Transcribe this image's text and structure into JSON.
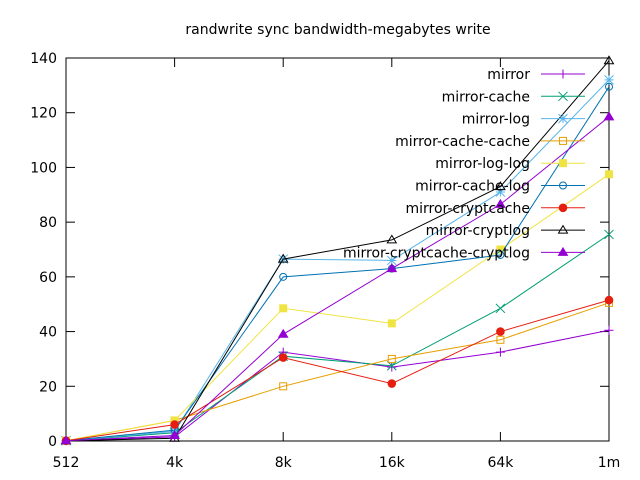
{
  "chart_data": {
    "type": "line",
    "title": "randwrite sync bandwidth-megabytes write",
    "xlabel": "",
    "ylabel": "",
    "categories": [
      "512",
      "4k",
      "8k",
      "16k",
      "64k",
      "1m"
    ],
    "ylim": [
      0,
      140
    ],
    "yticks": [
      0,
      20,
      40,
      60,
      80,
      100,
      120,
      140
    ],
    "grid": false,
    "legend_position": "top-right",
    "series": [
      {
        "name": "mirror",
        "color": "#9400d3",
        "marker": "plus",
        "values": [
          0.1,
          1.5,
          32.5,
          27,
          32.5,
          40.5
        ]
      },
      {
        "name": "mirror-cache",
        "color": "#009e73",
        "marker": "cross",
        "values": [
          0.1,
          3,
          31,
          27.5,
          48.5,
          75.5
        ]
      },
      {
        "name": "mirror-log",
        "color": "#56b4e9",
        "marker": "star",
        "values": [
          0.1,
          3.5,
          66.5,
          66,
          91,
          132
        ]
      },
      {
        "name": "mirror-cache-cache",
        "color": "#e69f00",
        "marker": "square-open",
        "values": [
          0.1,
          7.5,
          20,
          30,
          37,
          50.5
        ]
      },
      {
        "name": "mirror-log-log",
        "color": "#f0e442",
        "marker": "square-filled",
        "values": [
          0.1,
          7.5,
          48.5,
          43,
          70,
          97.5
        ]
      },
      {
        "name": "mirror-cache-log",
        "color": "#0072b2",
        "marker": "circle-open",
        "values": [
          0.1,
          4,
          60,
          63,
          68,
          129.5
        ]
      },
      {
        "name": "mirror-cryptcache",
        "color": "#e51e10",
        "marker": "circle-filled",
        "values": [
          0.1,
          6,
          30.5,
          21,
          40,
          51.5
        ]
      },
      {
        "name": "mirror-cryptlog",
        "color": "#000000",
        "marker": "triangle-open",
        "values": [
          0.1,
          1,
          66.5,
          73.5,
          93,
          139
        ]
      },
      {
        "name": "mirror-cryptcache-cryptlog",
        "color": "#9400d3",
        "marker": "triangle-filled",
        "values": [
          0.1,
          2,
          39,
          63,
          86.5,
          118.5
        ]
      }
    ]
  }
}
